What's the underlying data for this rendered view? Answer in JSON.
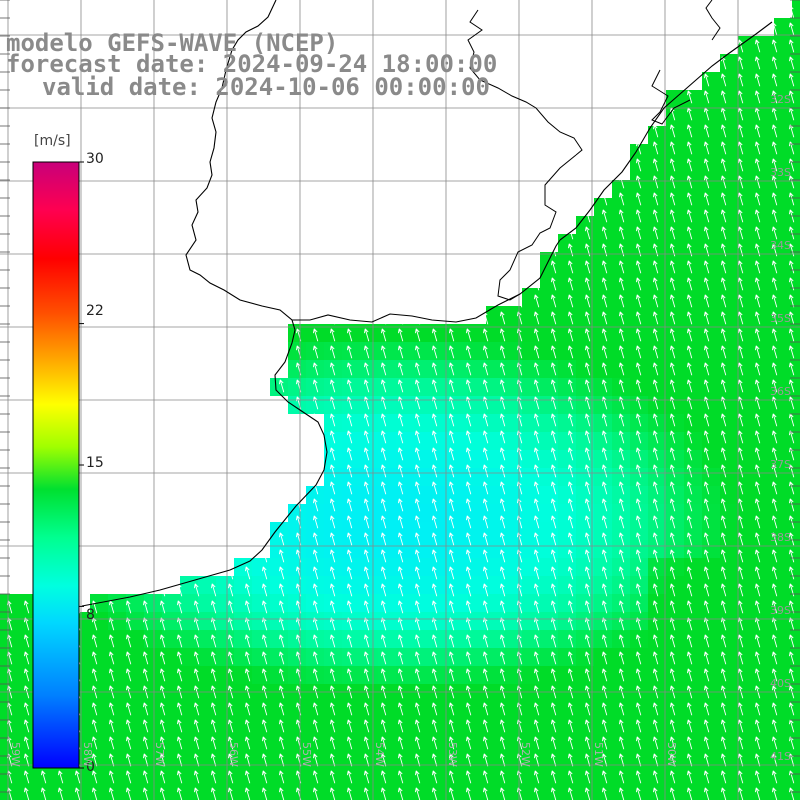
{
  "header": {
    "line1": "modelo GEFS-WAVE (NCEP)",
    "line2": "forecast date: 2024-09-24 18:00:00",
    "line3": "valid date: 2024-10-06 00:00:00"
  },
  "colorbar": {
    "unit": "[m/s]",
    "range": [
      0,
      30
    ],
    "ticks": [
      {
        "label": "30",
        "value": 30
      },
      {
        "label": "22",
        "value": 22
      },
      {
        "label": "15",
        "value": 15
      },
      {
        "label": "8",
        "value": 8
      },
      {
        "label": "0",
        "value": 0
      }
    ],
    "stops": [
      "#0000ff",
      "#00a0ff",
      "#00ffff",
      "#00ff80",
      "#00e000",
      "#80ff00",
      "#ffff00",
      "#ff8000",
      "#ff0000",
      "#ff0060",
      "#c00080"
    ]
  },
  "grid": {
    "lat_labels": [
      "32S",
      "33S",
      "34S",
      "35S",
      "36S",
      "37S",
      "38S",
      "39S",
      "40S",
      "41S"
    ],
    "lon_labels": [
      "59W",
      "58W",
      "57W",
      "56W",
      "55W",
      "54W",
      "53W",
      "52W",
      "51W",
      "50W"
    ]
  },
  "colors": {
    "grid_line": "#888888",
    "coastline": "#000000",
    "arrow": "#ffffff",
    "label": "#8a8a8a"
  }
}
